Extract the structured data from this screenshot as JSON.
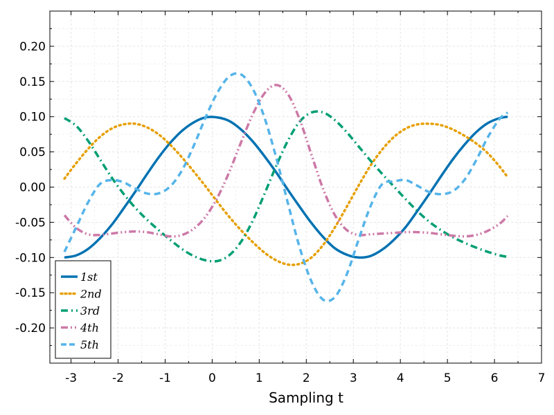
{
  "chart_data": {
    "type": "line",
    "title": "",
    "xlabel": "Sampling t",
    "ylabel": "",
    "xlim": [
      -3.45,
      7.0
    ],
    "ylim": [
      -0.25,
      0.25
    ],
    "xticks": [
      -3,
      -2,
      -1,
      0,
      1,
      2,
      3,
      4,
      5,
      6,
      7
    ],
    "yticks": [
      -0.2,
      -0.15,
      -0.1,
      -0.05,
      0.0,
      0.05,
      0.1,
      0.15,
      0.2
    ],
    "xtick_labels": [
      "-3",
      "-2",
      "-1",
      "0",
      "1",
      "2",
      "3",
      "4",
      "5",
      "6",
      "7"
    ],
    "ytick_labels": [
      "-0.20",
      "-0.15",
      "-0.10",
      "-0.05",
      "0.00",
      "0.05",
      "0.10",
      "0.15",
      "0.20"
    ],
    "grid": true,
    "legend_position": "bottom-left",
    "x": [
      -3.14,
      -2.89,
      -2.64,
      -2.39,
      -2.14,
      -1.89,
      -1.64,
      -1.39,
      -1.14,
      -0.89,
      -0.64,
      -0.39,
      -0.14,
      0.11,
      0.36,
      0.61,
      0.86,
      1.11,
      1.36,
      1.61,
      1.86,
      2.11,
      2.36,
      2.61,
      2.86,
      3.11,
      3.36,
      3.61,
      3.86,
      4.11,
      4.36,
      4.61,
      4.86,
      5.11,
      5.36,
      5.61,
      5.86,
      6.11,
      6.28
    ],
    "series": [
      {
        "name": "1st",
        "color": "#0072b2",
        "dash": "solid",
        "values": [
          -0.1,
          -0.097,
          -0.088,
          -0.073,
          -0.054,
          -0.031,
          -0.007,
          0.018,
          0.042,
          0.063,
          0.08,
          0.092,
          0.099,
          0.099,
          0.094,
          0.082,
          0.065,
          0.044,
          0.021,
          -0.004,
          -0.028,
          -0.051,
          -0.071,
          -0.087,
          -0.096,
          -0.1,
          -0.098,
          -0.089,
          -0.075,
          -0.057,
          -0.034,
          -0.01,
          0.015,
          0.039,
          0.06,
          0.078,
          0.091,
          0.098,
          0.1
        ]
      },
      {
        "name": "2nd",
        "color": "#e69f00",
        "dash": "dot",
        "values": [
          0.012,
          0.034,
          0.054,
          0.071,
          0.083,
          0.089,
          0.09,
          0.085,
          0.075,
          0.06,
          0.042,
          0.022,
          0.001,
          -0.021,
          -0.042,
          -0.061,
          -0.078,
          -0.093,
          -0.104,
          -0.11,
          -0.109,
          -0.1,
          -0.082,
          -0.057,
          -0.028,
          0.002,
          0.03,
          0.053,
          0.071,
          0.083,
          0.089,
          0.09,
          0.088,
          0.082,
          0.073,
          0.062,
          0.048,
          0.029,
          0.014
        ]
      },
      {
        "name": "3rd",
        "color": "#009e73",
        "dash": "dashdot",
        "values": [
          0.098,
          0.087,
          0.066,
          0.04,
          0.014,
          -0.009,
          -0.029,
          -0.046,
          -0.061,
          -0.075,
          -0.088,
          -0.098,
          -0.104,
          -0.105,
          -0.097,
          -0.078,
          -0.048,
          -0.01,
          0.03,
          0.066,
          0.093,
          0.106,
          0.106,
          0.095,
          0.078,
          0.058,
          0.038,
          0.019,
          0.001,
          -0.017,
          -0.034,
          -0.049,
          -0.061,
          -0.071,
          -0.079,
          -0.086,
          -0.092,
          -0.097,
          -0.099
        ]
      },
      {
        "name": "4th",
        "color": "#cc79a7",
        "dash": "dashdotdot",
        "values": [
          -0.04,
          -0.058,
          -0.067,
          -0.068,
          -0.066,
          -0.064,
          -0.063,
          -0.064,
          -0.067,
          -0.07,
          -0.068,
          -0.059,
          -0.042,
          -0.015,
          0.021,
          0.063,
          0.103,
          0.133,
          0.145,
          0.132,
          0.096,
          0.046,
          -0.003,
          -0.04,
          -0.061,
          -0.068,
          -0.067,
          -0.066,
          -0.065,
          -0.064,
          -0.064,
          -0.065,
          -0.067,
          -0.069,
          -0.07,
          -0.068,
          -0.062,
          -0.052,
          -0.041
        ]
      },
      {
        "name": "5th",
        "color": "#56b4e9",
        "dash": "dash",
        "values": [
          -0.092,
          -0.057,
          -0.022,
          0.004,
          0.01,
          0.007,
          -0.002,
          -0.009,
          -0.009,
          0.001,
          0.024,
          0.059,
          0.099,
          0.134,
          0.157,
          0.16,
          0.14,
          0.099,
          0.042,
          -0.023,
          -0.086,
          -0.134,
          -0.16,
          -0.156,
          -0.124,
          -0.075,
          -0.028,
          0.004,
          0.008,
          0.01,
          0.002,
          -0.007,
          -0.01,
          -0.006,
          0.01,
          0.038,
          0.071,
          0.097,
          0.106
        ]
      }
    ]
  }
}
